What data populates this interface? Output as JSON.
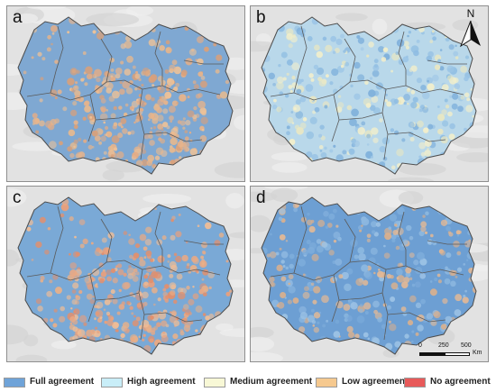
{
  "panels": [
    {
      "label": "a",
      "base": "#7fa8d2",
      "patches": [
        "#e8b48a",
        "#e6b98f",
        "#d9a07a",
        "#f0c296",
        "#e4ad86"
      ]
    },
    {
      "label": "b",
      "base": "#b9d8ea",
      "patches": [
        "#7fb0db",
        "#8fbde2",
        "#f3efcb",
        "#e9e7c2",
        "#9cc5e6"
      ]
    },
    {
      "label": "c",
      "base": "#7aa9d6",
      "patches": [
        "#eb9f7a",
        "#e8b089",
        "#f0bd96",
        "#e38f6c",
        "#e9a984"
      ]
    },
    {
      "label": "d",
      "base": "#6d9fd3",
      "patches": [
        "#8db8e0",
        "#e4b995",
        "#9dc3e5",
        "#d9b08e",
        "#7eaddb"
      ]
    }
  ],
  "north_arrow": {
    "letter": "N"
  },
  "scale": {
    "ticks": [
      "0",
      "250",
      "500"
    ],
    "unit": "Km"
  },
  "legend": [
    {
      "label": "Full agreement",
      "color": "#6fa3d8"
    },
    {
      "label": "High agreement",
      "color": "#c9eef8"
    },
    {
      "label": "Medium agreement",
      "color": "#f8f8d6"
    },
    {
      "label": "Low agreement",
      "color": "#f6c98f"
    },
    {
      "label": "No agreement",
      "color": "#e85a5a"
    }
  ]
}
